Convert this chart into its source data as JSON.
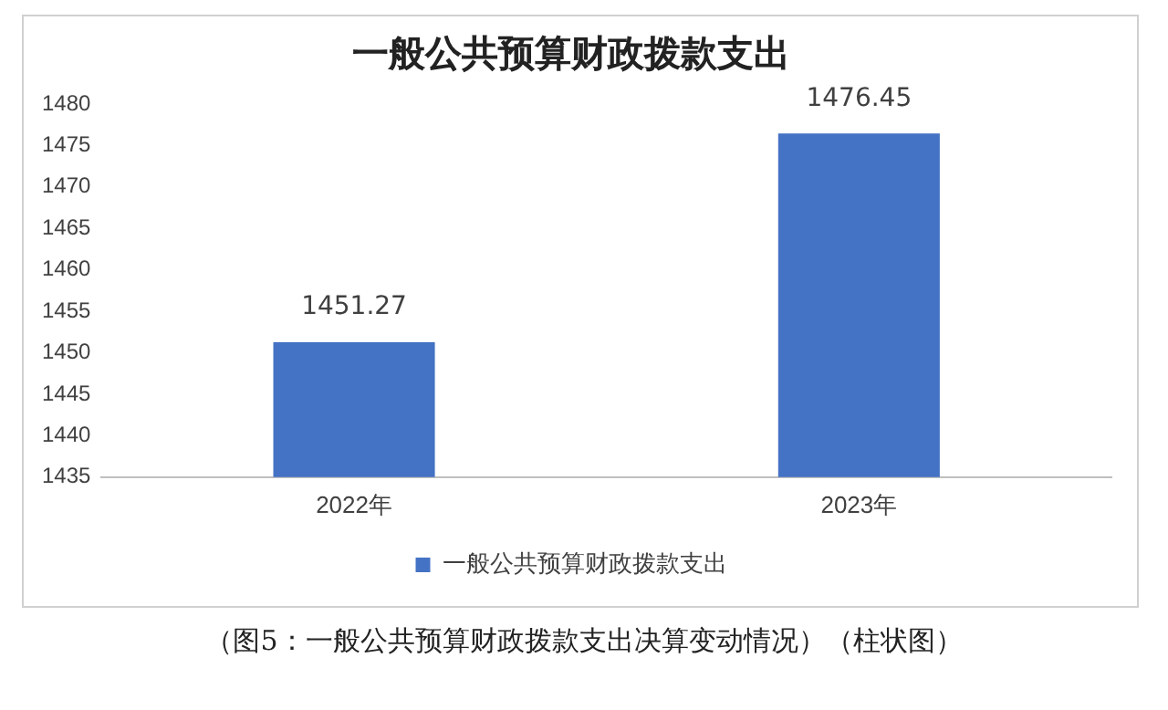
{
  "chart_data": {
    "type": "bar",
    "title": "一般公共预算财政拨款支出",
    "categories": [
      "2022年",
      "2023年"
    ],
    "series": [
      {
        "name": "一般公共预算财政拨款支出",
        "color": "#4472c4",
        "values": [
          1451.27,
          1476.45
        ]
      }
    ],
    "ylim": [
      1435,
      1480
    ],
    "yticks": [
      1435,
      1440,
      1445,
      1450,
      1455,
      1460,
      1465,
      1470,
      1475,
      1480
    ],
    "grid": false,
    "legend": "bottom",
    "data_labels": true,
    "annotations": [
      "（图5：一般公共预算财政拨款支出决算变动情况）（柱状图）"
    ]
  }
}
